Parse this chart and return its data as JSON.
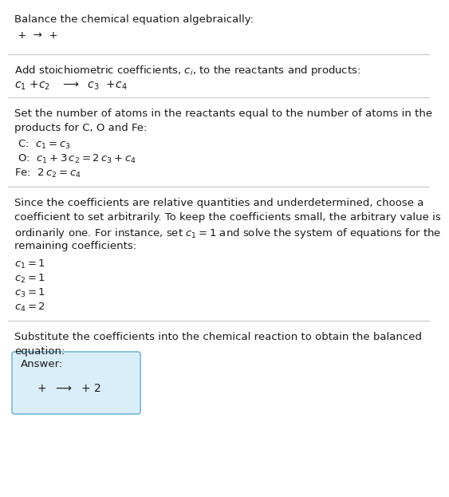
{
  "title": "Balance the chemical equation algebraically:",
  "section1_eq": " +  →  + ",
  "section2_header": "Add stoichiometric coefficients, $c_i$, to the reactants and products:",
  "section2_eq": "$c_1$ +$c_2$   $\\longrightarrow$  $c_3$  +$c_4$",
  "section3_header1": "Set the number of atoms in the reactants equal to the number of atoms in the",
  "section3_header2": "products for C, O and Fe:",
  "section3_C": " C:  $c_1 = c_3$",
  "section3_O": " O:  $c_1 + 3\\,c_2 = 2\\,c_3 + c_4$",
  "section3_Fe": "Fe:  $2\\,c_2 = c_4$",
  "section4_header1": "Since the coefficients are relative quantities and underdetermined, choose a",
  "section4_header2": "coefficient to set arbitrarily. To keep the coefficients small, the arbitrary value is",
  "section4_header3": "ordinarily one. For instance, set $c_1 = 1$ and solve the system of equations for the",
  "section4_header4": "remaining coefficients:",
  "section4_c1": "$c_1 = 1$",
  "section4_c2": "$c_2 = 1$",
  "section4_c3": "$c_3 = 1$",
  "section4_c4": "$c_4 = 2$",
  "section5_header1": "Substitute the coefficients into the chemical reaction to obtain the balanced",
  "section5_header2": "equation:",
  "answer_label": "Answer:",
  "answer_eq": "  +  $\\longrightarrow$  + 2",
  "bg_color": "#ffffff",
  "text_color": "#1a1a1a",
  "box_fill": "#daeef9",
  "box_edge": "#74b8d8",
  "line_color": "#c8c8c8",
  "fs": 9.5
}
